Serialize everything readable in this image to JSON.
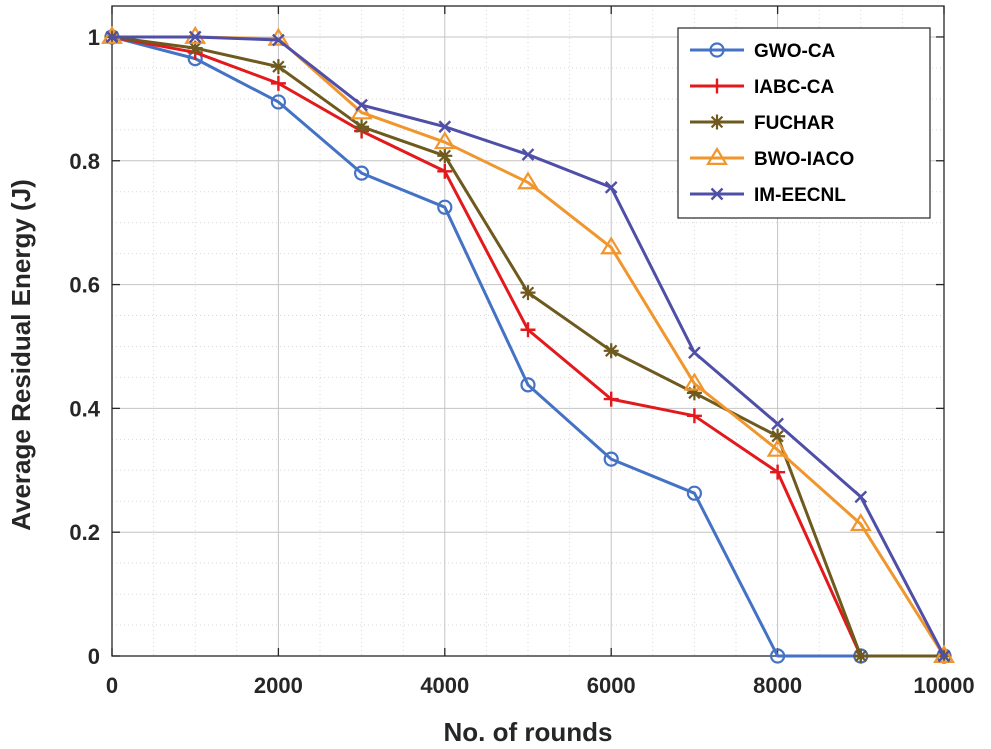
{
  "chart_data": {
    "type": "line",
    "title": "",
    "xlabel": "No. of rounds",
    "ylabel": "Average Residual Energy (J)",
    "xlim": [
      0,
      10000
    ],
    "ylim": [
      0,
      1.05
    ],
    "xticks": [
      0,
      2000,
      4000,
      6000,
      8000,
      10000
    ],
    "xtick_labels": [
      "0",
      "2000",
      "4000",
      "6000",
      "8000",
      "10000"
    ],
    "yticks": [
      0,
      0.2,
      0.4,
      0.6,
      0.8,
      1
    ],
    "ytick_labels": [
      "0",
      "0.2",
      "0.4",
      "0.6",
      "0.8",
      "1"
    ],
    "grid": true,
    "legend_position": "top-right",
    "x": [
      0,
      1000,
      2000,
      3000,
      4000,
      5000,
      6000,
      7000,
      8000,
      9000,
      10000
    ],
    "series": [
      {
        "name": "GWO-CA",
        "color": "#4472C4",
        "marker": "circle",
        "values": [
          1.0,
          0.965,
          0.895,
          0.78,
          0.725,
          0.438,
          0.318,
          0.263,
          0.0,
          0.0,
          0.0
        ]
      },
      {
        "name": "IABC-CA",
        "color": "#E3191C",
        "marker": "plus",
        "values": [
          1.0,
          0.975,
          0.925,
          0.848,
          0.783,
          0.527,
          0.415,
          0.388,
          0.297,
          0.0,
          0.0
        ]
      },
      {
        "name": "FUCHAR",
        "color": "#6E5A1E",
        "marker": "asterisk",
        "values": [
          1.0,
          0.982,
          0.952,
          0.855,
          0.808,
          0.587,
          0.493,
          0.425,
          0.355,
          0.0,
          0.0
        ]
      },
      {
        "name": "BWO-IACO",
        "color": "#F0962D",
        "marker": "triangle",
        "values": [
          1.0,
          1.0,
          0.997,
          0.878,
          0.83,
          0.765,
          0.66,
          0.44,
          0.333,
          0.213,
          0.0
        ]
      },
      {
        "name": "IM-EECNL",
        "color": "#4F4FA8",
        "marker": "x",
        "values": [
          1.0,
          1.0,
          0.995,
          0.89,
          0.855,
          0.81,
          0.757,
          0.49,
          0.375,
          0.257,
          0.0
        ]
      }
    ]
  }
}
